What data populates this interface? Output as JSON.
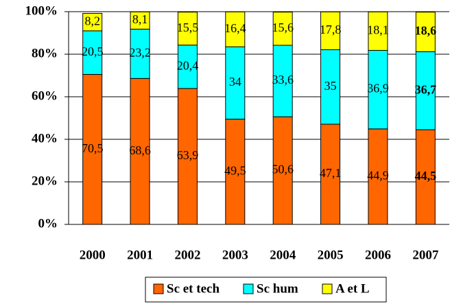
{
  "chart_data": {
    "type": "stacked_bar",
    "categories": [
      "2000",
      "2001",
      "2002",
      "2003",
      "2004",
      "2005",
      "2006",
      "2007"
    ],
    "series": [
      {
        "name": "Sc et tech",
        "color": "#ff6600",
        "values": [
          70.5,
          68.6,
          63.9,
          49.5,
          50.6,
          47.1,
          44.9,
          44.5
        ],
        "value_labels": [
          "70,5",
          "68,6",
          "63,9",
          "49,5",
          "50,6",
          "47,1",
          "44,9",
          "44,5"
        ]
      },
      {
        "name": "Sc hum",
        "color": "#00ffff",
        "values": [
          20.5,
          23.2,
          20.4,
          34,
          33.6,
          35,
          36.9,
          36.7
        ],
        "value_labels": [
          "20,5",
          "23,2",
          "20,4",
          "34",
          "33,6",
          "35",
          "36,9",
          "36,7"
        ]
      },
      {
        "name": "A et L",
        "color": "#ffff00",
        "values": [
          8.2,
          8.1,
          15.5,
          16.4,
          15.6,
          17.8,
          18.1,
          18.6
        ],
        "value_labels": [
          "8,2",
          "8,1",
          "15,5",
          "16,4",
          "15,6",
          "17,8",
          "18,1",
          "18,6"
        ]
      }
    ],
    "ylim": [
      0,
      100
    ],
    "yticks": [
      {
        "value": 0,
        "label": "0%"
      },
      {
        "value": 20,
        "label": "20%"
      },
      {
        "value": 40,
        "label": "40%"
      },
      {
        "value": 60,
        "label": "60%"
      },
      {
        "value": 80,
        "label": "80%"
      },
      {
        "value": 100,
        "label": "100%"
      }
    ],
    "grid": true,
    "legend": "bottom"
  }
}
